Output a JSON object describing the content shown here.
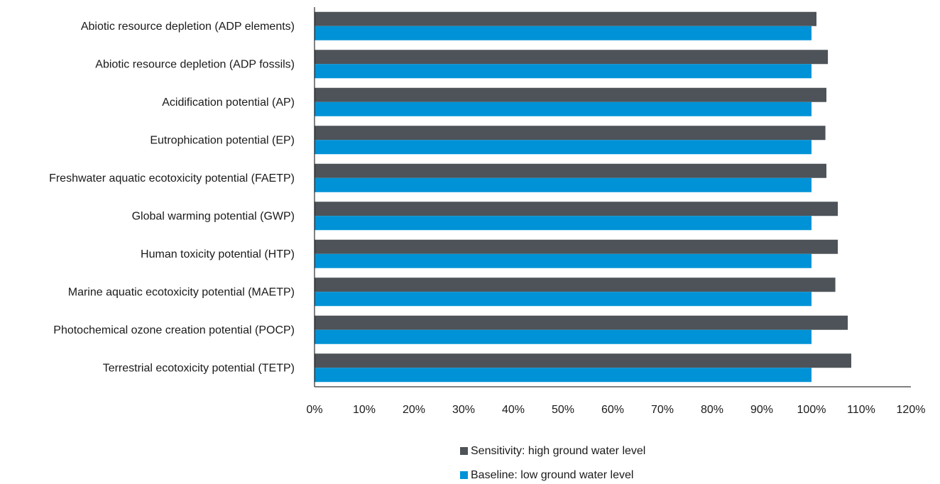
{
  "chart_data": {
    "type": "bar",
    "orientation": "horizontal",
    "categories": [
      "Abiotic resource depletion (ADP elements)",
      "Abiotic resource depletion (ADP fossils)",
      "Acidification potential (AP)",
      "Eutrophication potential (EP)",
      "Freshwater aquatic ecotoxicity potential (FAETP)",
      "Global warming potential (GWP)",
      "Human toxicity potential (HTP)",
      "Marine aquatic ecotoxicity potential (MAETP)",
      "Photochemical ozone creation potential (POCP)",
      "Terrestrial ecotoxicity potential (TETP)"
    ],
    "series": [
      {
        "name": "Sensitivity: high ground water level",
        "color": "#4d5358",
        "values": [
          101,
          103.3,
          103,
          102.8,
          103,
          105.3,
          105.3,
          104.8,
          107.3,
          108
        ]
      },
      {
        "name": "Baseline: low ground water level",
        "color": "#0092d6",
        "values": [
          100,
          100,
          100,
          100,
          100,
          100,
          100,
          100,
          100,
          100
        ]
      }
    ],
    "xlim": [
      0,
      120
    ],
    "xticks": [
      "0%",
      "10%",
      "20%",
      "30%",
      "40%",
      "50%",
      "60%",
      "70%",
      "80%",
      "90%",
      "100%",
      "110%",
      "120%"
    ],
    "grid": false,
    "legend_position": "bottom-center",
    "title": "",
    "xlabel": "",
    "ylabel": ""
  }
}
